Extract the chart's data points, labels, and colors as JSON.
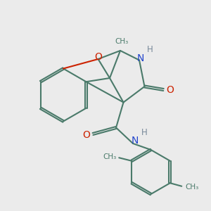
{
  "background_color": "#ebebeb",
  "bond_color": "#4a7a6a",
  "bond_width": 1.5,
  "o_color": "#cc2200",
  "n_color": "#2244cc",
  "h_color": "#778899",
  "figsize": [
    3.0,
    3.0
  ],
  "dpi": 100,
  "xlim": [
    0,
    10
  ],
  "ylim": [
    0,
    10
  ]
}
